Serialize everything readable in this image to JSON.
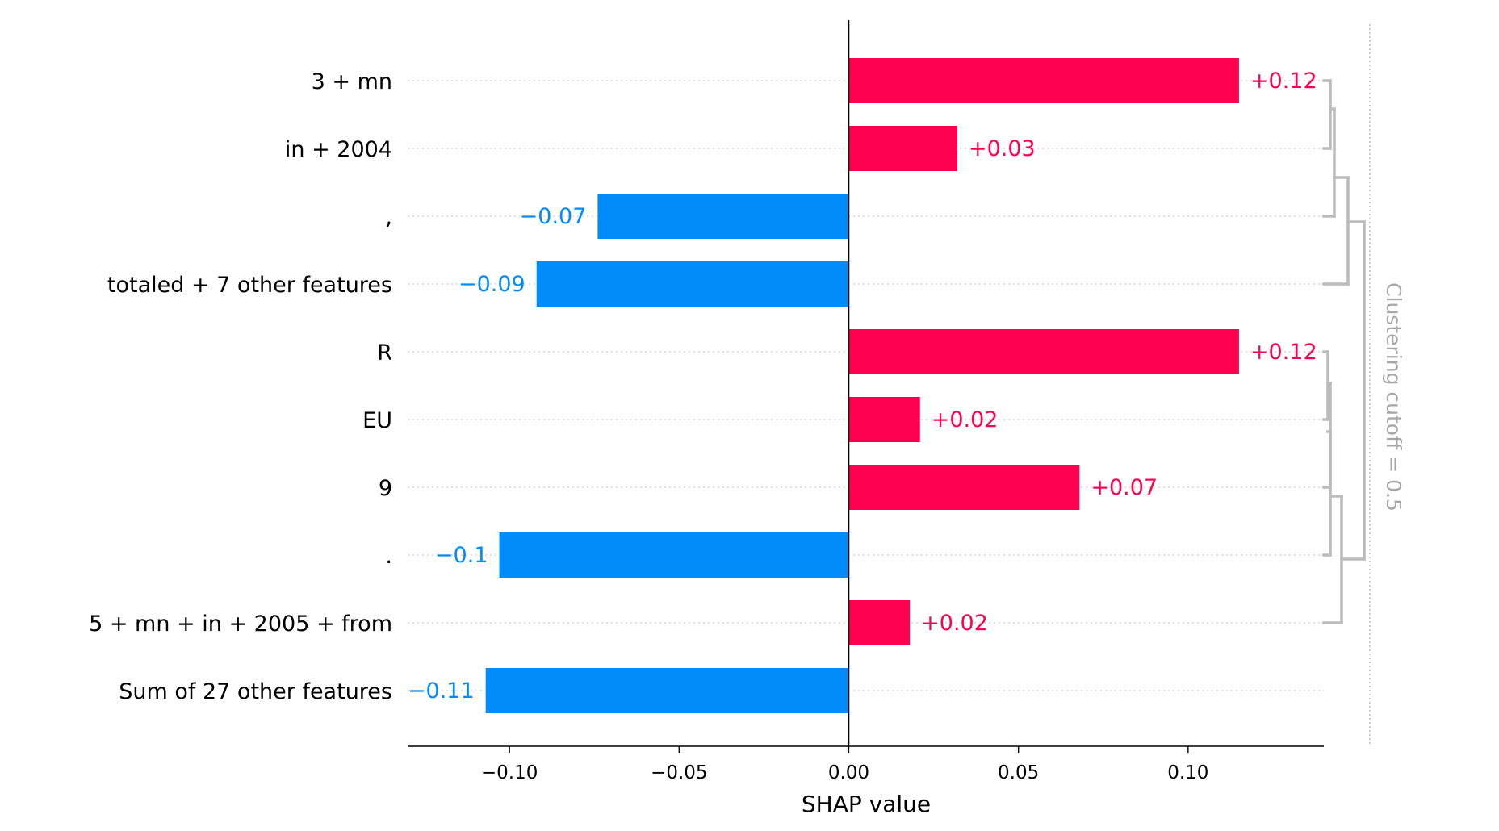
{
  "colors": {
    "positive": "#ff0051",
    "negative": "#008bfb",
    "dendrogram": "#bbbbbb",
    "cutoff": "#a6a6a6",
    "gridline": "#cccccc"
  },
  "chart_data": {
    "type": "bar",
    "orientation": "horizontal",
    "categories": [
      "3 + mn",
      "in + 2004",
      ",",
      "totaled + 7 other features",
      "R",
      "EU",
      "9",
      ".",
      "5 + mn + in + 2005 + from",
      "Sum of 27 other features"
    ],
    "values": [
      0.115,
      0.032,
      -0.074,
      -0.092,
      0.115,
      0.021,
      0.068,
      -0.103,
      0.018,
      -0.107
    ],
    "data_labels": [
      "+0.12",
      "+0.03",
      "−0.07",
      "−0.09",
      "+0.12",
      "+0.02",
      "+0.07",
      "−0.1",
      "+0.02",
      "−0.11"
    ],
    "xlabel": "SHAP value",
    "ylabel": "",
    "xlim": [
      -0.13,
      0.14
    ],
    "xticks": [
      -0.1,
      -0.05,
      0.0,
      0.05,
      0.1
    ],
    "xtick_labels": [
      "−0.10",
      "−0.05",
      "0.00",
      "0.05",
      "0.10"
    ],
    "clustering_label": "Clustering cutoff = 0.5",
    "grid": false
  }
}
